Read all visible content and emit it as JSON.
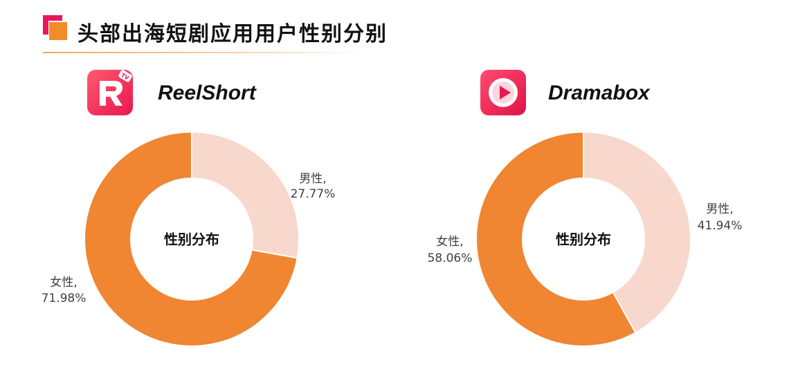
{
  "header": {
    "title": "头部出海短剧应用用户性别分别"
  },
  "apps": [
    {
      "name": "ReelShort",
      "icon": "reelshort-logo-icon",
      "icon_badge": "TV"
    },
    {
      "name": "Dramabox",
      "icon": "dramabox-play-logo-icon"
    }
  ],
  "colors": {
    "female": "#f08532",
    "male": "#f8d8cc",
    "accent_pink": "#e8175d",
    "accent_orange": "#f28c28"
  },
  "chart_data": [
    {
      "type": "pie",
      "variant": "donut",
      "title": "ReelShort",
      "center_label": "性别分布",
      "slices": [
        {
          "label": "男性,",
          "value": 27.77,
          "display": "27.77%"
        },
        {
          "label": "女性,",
          "value": 71.98,
          "display": "71.98%"
        }
      ]
    },
    {
      "type": "pie",
      "variant": "donut",
      "title": "Dramabox",
      "center_label": "性别分布",
      "slices": [
        {
          "label": "男性,",
          "value": 41.94,
          "display": "41.94%"
        },
        {
          "label": "女性,",
          "value": 58.06,
          "display": "58.06%"
        }
      ]
    }
  ]
}
